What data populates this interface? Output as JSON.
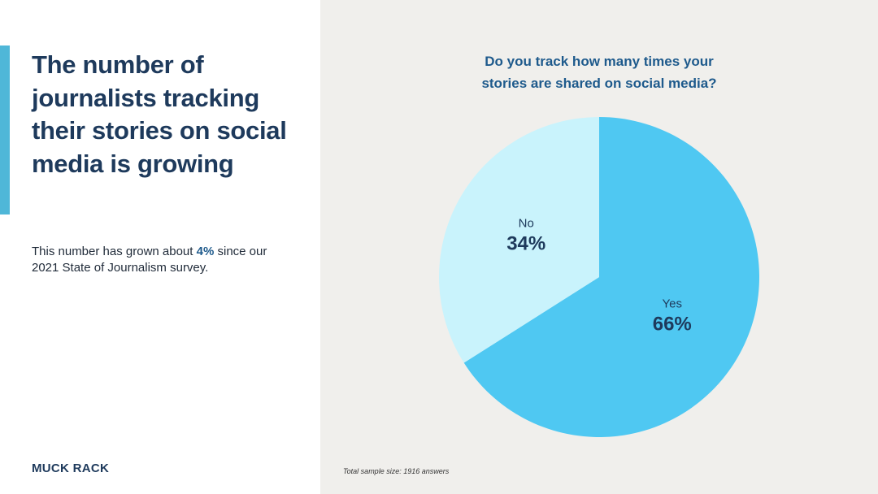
{
  "headline": "The number of journalists tracking their stories on social media is growing",
  "subtext": {
    "before": "This number has grown about ",
    "highlight": "4%",
    "after": " since our 2021 State of Journalism survey."
  },
  "brand": "MUCK RACK",
  "chart_data": {
    "type": "pie",
    "title_lines": [
      "Do you track how many times your",
      "stories are shared on social media?"
    ],
    "slices": [
      {
        "label": "Yes",
        "value": 66,
        "value_label": "66%",
        "color": "#4fc8f2"
      },
      {
        "label": "No",
        "value": 34,
        "value_label": "34%",
        "color": "#c9f3fc"
      }
    ],
    "legend": "none"
  },
  "footnote": "Total sample size: 1916 answers",
  "colors": {
    "accent": "#4fb7d8",
    "headline": "#1e3a5c",
    "highlight": "#1e5a8c",
    "panel_background": "#f0efec"
  }
}
